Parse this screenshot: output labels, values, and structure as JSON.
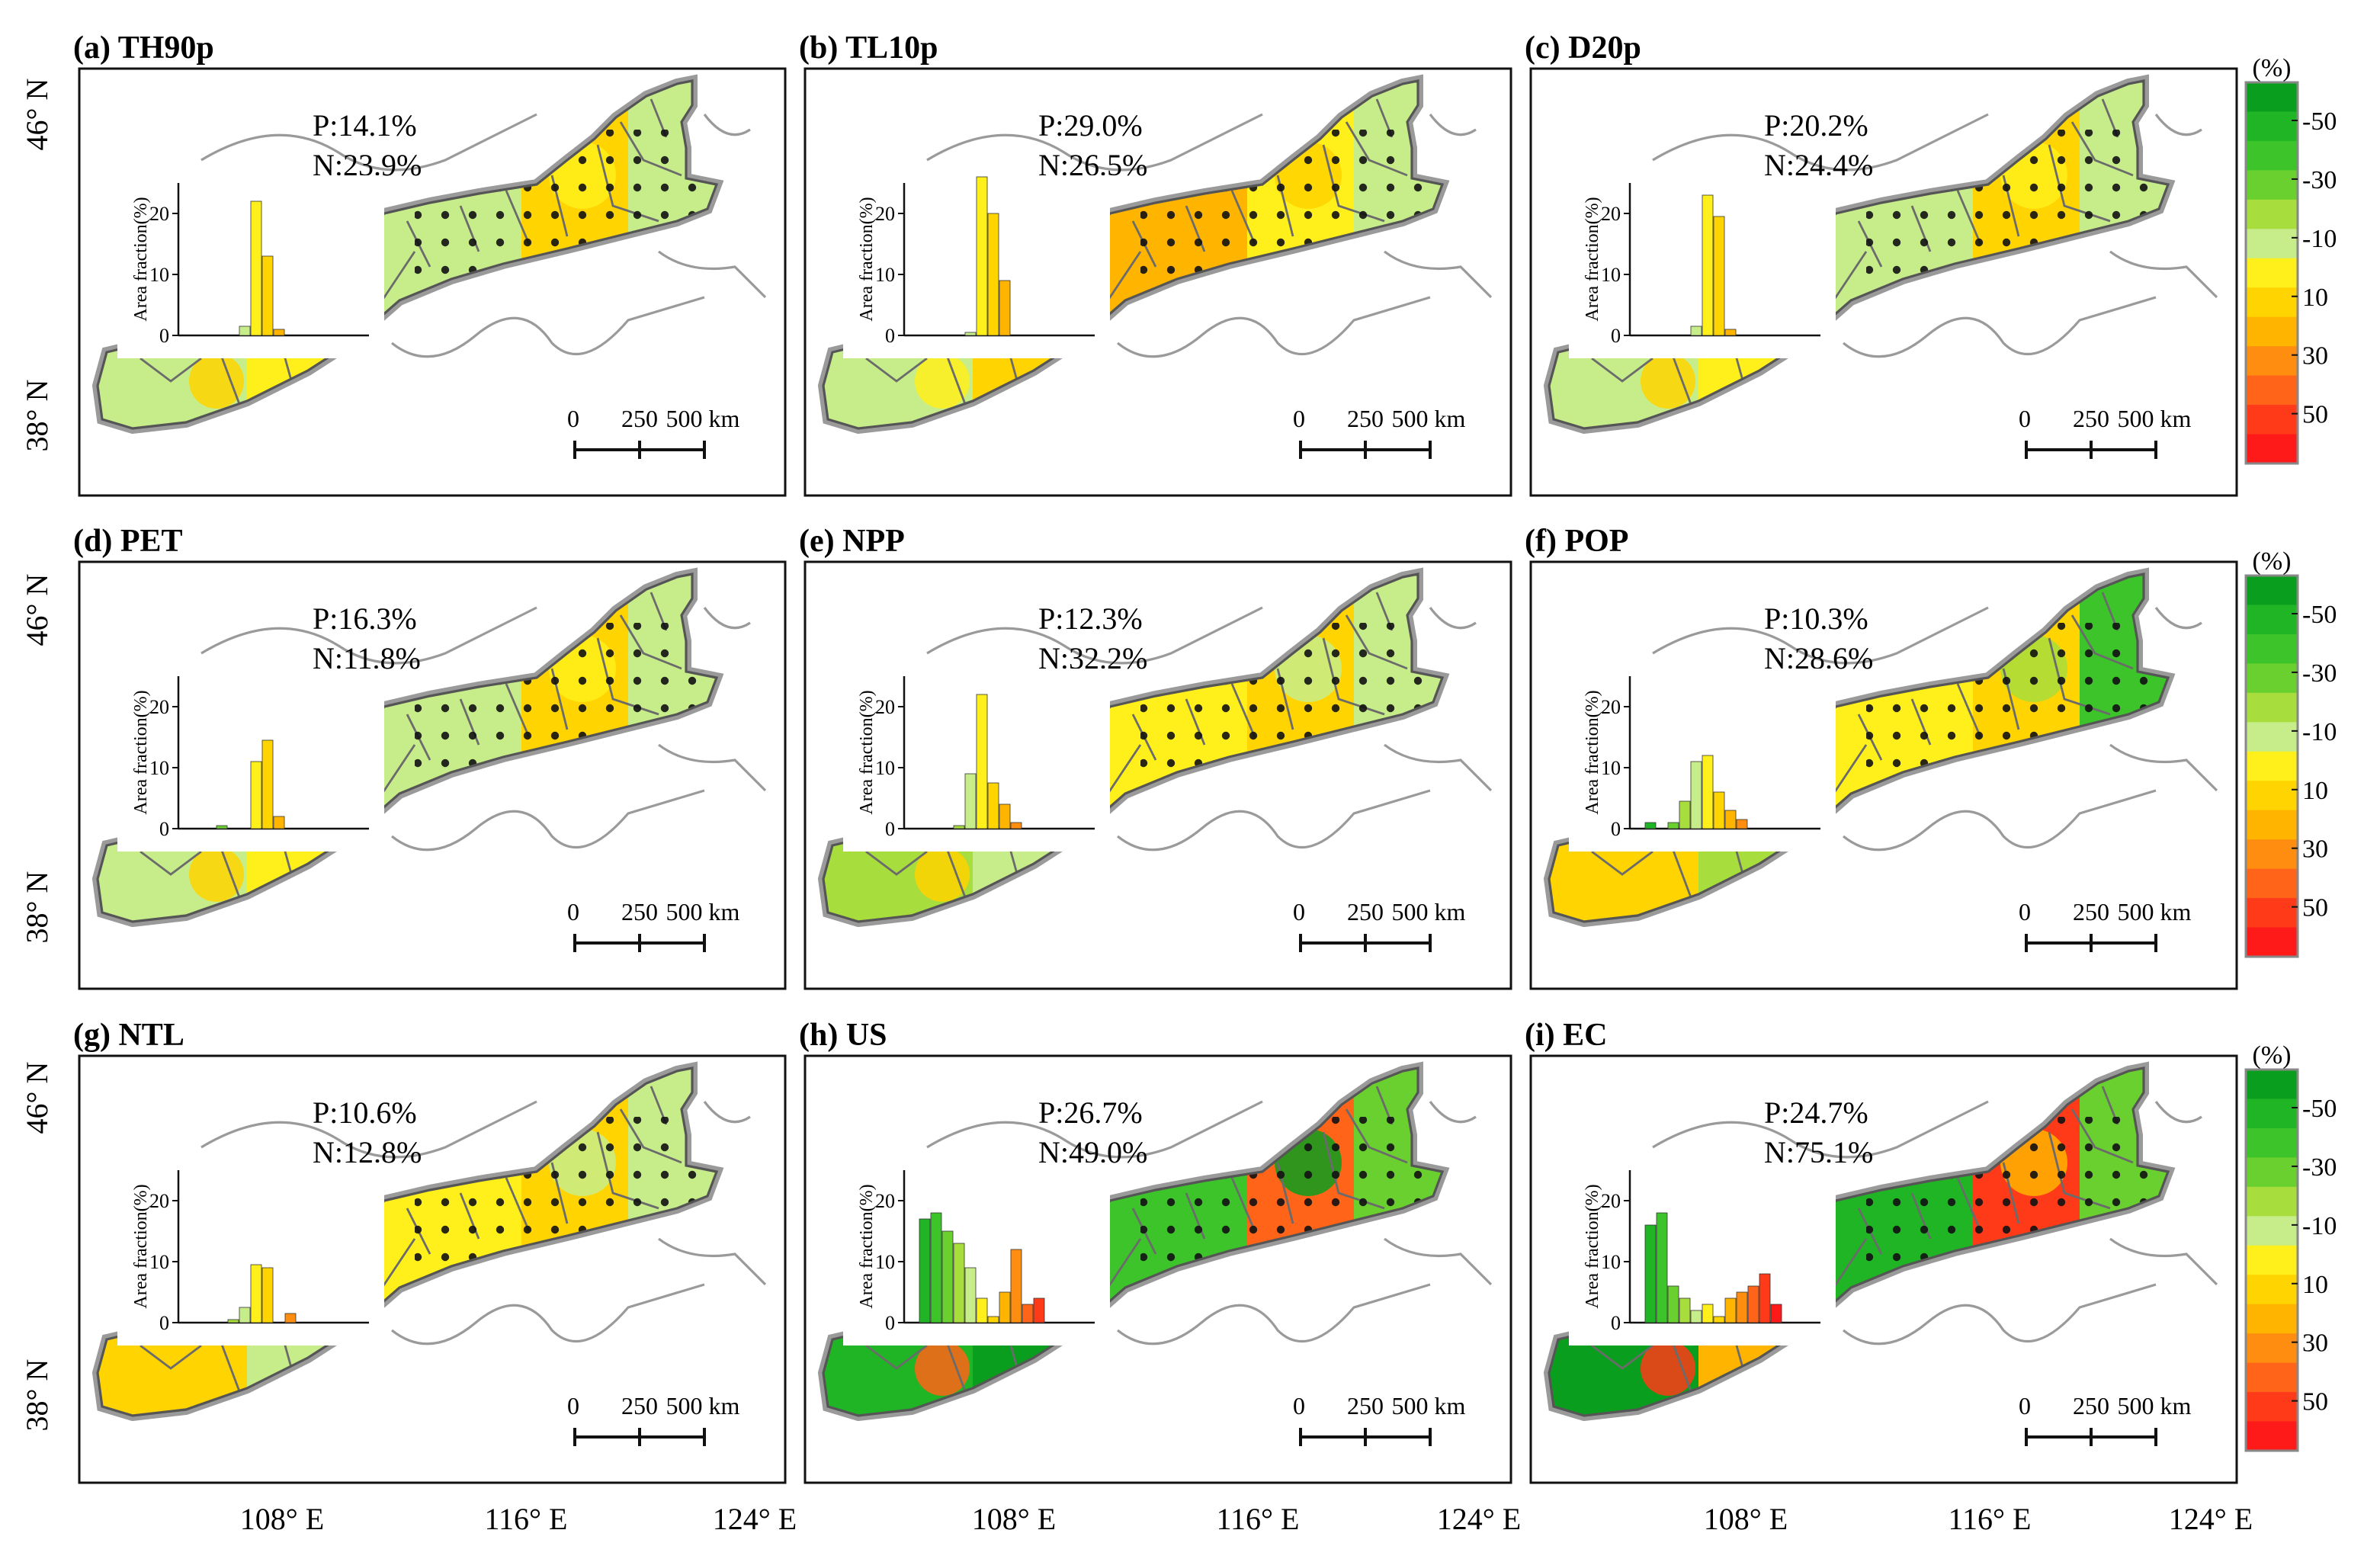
{
  "figure": {
    "y_axis": {
      "labels": [
        "46° N",
        "38° N"
      ]
    },
    "x_axis": {
      "labels": [
        "108° E",
        "116° E",
        "124° E"
      ]
    },
    "colorbar": {
      "unit": "(%)",
      "tick_labels": [
        "-50",
        "-30",
        "-10",
        "10",
        "30",
        "50"
      ],
      "colors": [
        "#0a9e1e",
        "#1fb524",
        "#3cc42a",
        "#6ad02f",
        "#a7dd3c",
        "#c7ed8a",
        "#ffef1a",
        "#ffd400",
        "#ffb400",
        "#ff8d10",
        "#ff6418",
        "#ff3a18",
        "#ff1a1a"
      ]
    },
    "scale_bar": {
      "labels": [
        "0",
        "250",
        "500 km"
      ]
    },
    "inset": {
      "ylabel": "Area fraction(%)",
      "ticks": [
        "0",
        "10",
        "20"
      ]
    }
  },
  "chart_data": [
    {
      "type": "bar",
      "panel": "(a) TH90p",
      "title": "(a) TH90p",
      "p_label": "P:14.1%",
      "n_label": "N:23.9%",
      "values": [
        0,
        0,
        0,
        0,
        1.5,
        22,
        13,
        1,
        0,
        0,
        0,
        0
      ],
      "ylim": [
        0,
        25
      ],
      "xlabel": "",
      "ylabel": "Area fraction(%)"
    },
    {
      "type": "bar",
      "panel": "(b) TL10p",
      "title": "(b) TL10p",
      "p_label": "P:29.0%",
      "n_label": "N:26.5%",
      "values": [
        0,
        0,
        0,
        0,
        0.5,
        26,
        20,
        9,
        0,
        0,
        0,
        0
      ],
      "ylim": [
        0,
        25
      ],
      "xlabel": "",
      "ylabel": "Area fraction(%)"
    },
    {
      "type": "bar",
      "panel": "(c) D20p",
      "title": "(c) D20p",
      "p_label": "P:20.2%",
      "n_label": "N:24.4%",
      "values": [
        0,
        0,
        0,
        0,
        1.5,
        23,
        19.5,
        1,
        0,
        0,
        0,
        0
      ],
      "ylim": [
        0,
        25
      ],
      "xlabel": "",
      "ylabel": "Area fraction(%)"
    },
    {
      "type": "bar",
      "panel": "(d) PET",
      "title": "(d) PET",
      "p_label": "P:16.3%",
      "n_label": "N:11.8%",
      "values": [
        0,
        0,
        0.5,
        0,
        0,
        11,
        14.5,
        2,
        0,
        0,
        0,
        0
      ],
      "ylim": [
        0,
        25
      ],
      "xlabel": "",
      "ylabel": "Area fraction(%)"
    },
    {
      "type": "bar",
      "panel": "(e) NPP",
      "title": "(e) NPP",
      "p_label": "P:12.3%",
      "n_label": "N:32.2%",
      "values": [
        0,
        0,
        0,
        0.5,
        9,
        22,
        7.5,
        4,
        1,
        0,
        0,
        0
      ],
      "ylim": [
        0,
        25
      ],
      "xlabel": "",
      "ylabel": "Area fraction(%)"
    },
    {
      "type": "bar",
      "panel": "(f) POP",
      "title": "(f) POP",
      "p_label": "P:10.3%",
      "n_label": "N:28.6%",
      "values": [
        1,
        0,
        1,
        4.5,
        11,
        12,
        6,
        3,
        1.5,
        0,
        0,
        0
      ],
      "ylim": [
        0,
        25
      ],
      "xlabel": "",
      "ylabel": "Area fraction(%)"
    },
    {
      "type": "bar",
      "panel": "(g) NTL",
      "title": "(g) NTL",
      "p_label": "P:10.6%",
      "n_label": "N:12.8%",
      "values": [
        0,
        0,
        0,
        0.5,
        2.5,
        9.5,
        9,
        0,
        1.5,
        0,
        0,
        0
      ],
      "ylim": [
        0,
        25
      ],
      "xlabel": "",
      "ylabel": "Area fraction(%)"
    },
    {
      "type": "bar",
      "panel": "(h) US",
      "title": "(h) US",
      "p_label": "P:26.7%",
      "n_label": "N:49.0%",
      "values": [
        17,
        18,
        15,
        13,
        9,
        4,
        1,
        5,
        12,
        3,
        4,
        0
      ],
      "ylim": [
        0,
        25
      ],
      "xlabel": "",
      "ylabel": "Area fraction(%)"
    },
    {
      "type": "bar",
      "panel": "(i) EC",
      "title": "(i) EC",
      "p_label": "P:24.7%",
      "n_label": "N:75.1%",
      "values": [
        16,
        18,
        6,
        4,
        2,
        3,
        1,
        4,
        5,
        6,
        8,
        3
      ],
      "ylim": [
        0,
        25
      ],
      "xlabel": "",
      "ylabel": "Area fraction(%)"
    }
  ]
}
